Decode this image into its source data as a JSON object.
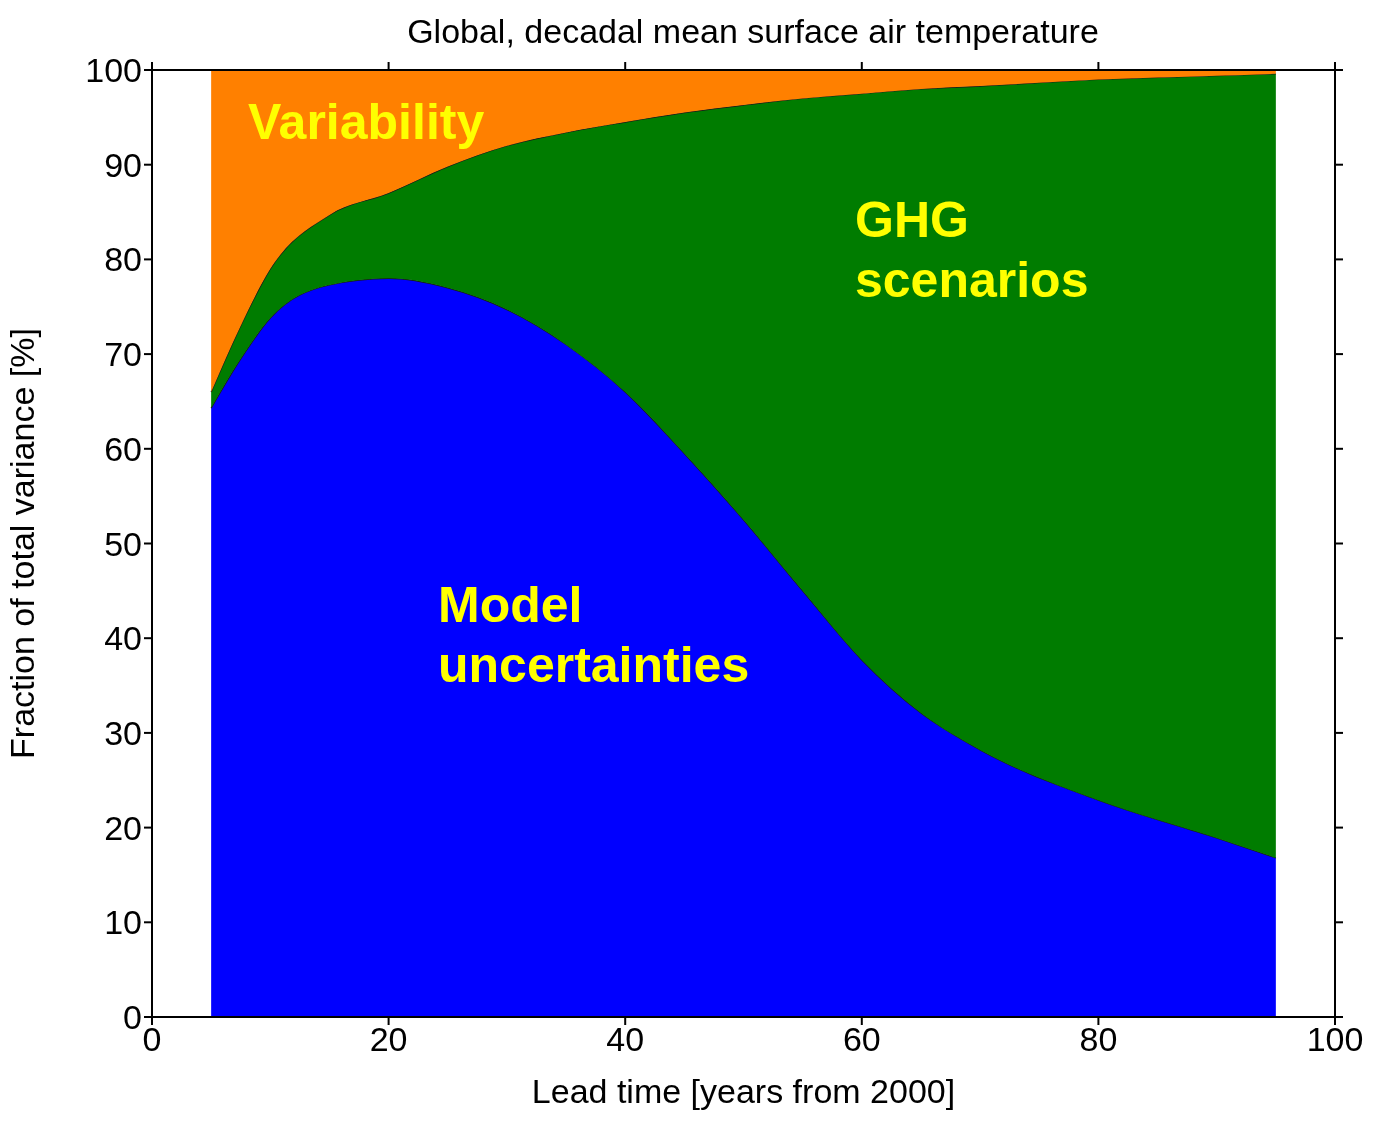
{
  "chart_data": {
    "type": "area",
    "stacked": true,
    "title": "Global, decadal mean surface air temperature",
    "xlabel": "Lead time  [years from 2000]",
    "ylabel": "Fraction of total variance  [%]",
    "x": [
      5,
      7.5,
      10,
      15,
      20,
      25,
      30,
      35,
      40,
      45,
      50,
      55,
      60,
      65,
      70,
      80,
      90,
      95
    ],
    "series": [
      {
        "name": "Model uncertainties",
        "color": "#0000ff",
        "values": [
          64.3,
          69.5,
          73.8,
          77.3,
          78,
          77,
          74.7,
          71,
          66,
          59.5,
          52.5,
          45,
          37.7,
          32.1,
          28.2,
          22.9,
          18.9,
          16.8
        ]
      },
      {
        "name": "GHG scenarios",
        "color": "#007c00",
        "values": [
          1.7,
          3.5,
          5.2,
          7.4,
          9,
          12.8,
          17.3,
          22.4,
          28.5,
          36,
          43.8,
          52,
          59.8,
          65.9,
          70.1,
          76.1,
          80.5,
          82.8
        ]
      },
      {
        "name": "Variability",
        "color": "#ff8000",
        "values": [
          34,
          27,
          21,
          15.3,
          13,
          10.2,
          8,
          6.6,
          5.5,
          4.5,
          3.7,
          3,
          2.5,
          2,
          1.7,
          1,
          0.6,
          0.4
        ]
      }
    ],
    "xlim": [
      0,
      100
    ],
    "xticks": [
      0,
      20,
      40,
      60,
      80,
      100
    ],
    "ylim": [
      0,
      100
    ],
    "yticks": [
      0,
      10,
      20,
      30,
      40,
      50,
      60,
      70,
      80,
      90,
      100
    ]
  }
}
